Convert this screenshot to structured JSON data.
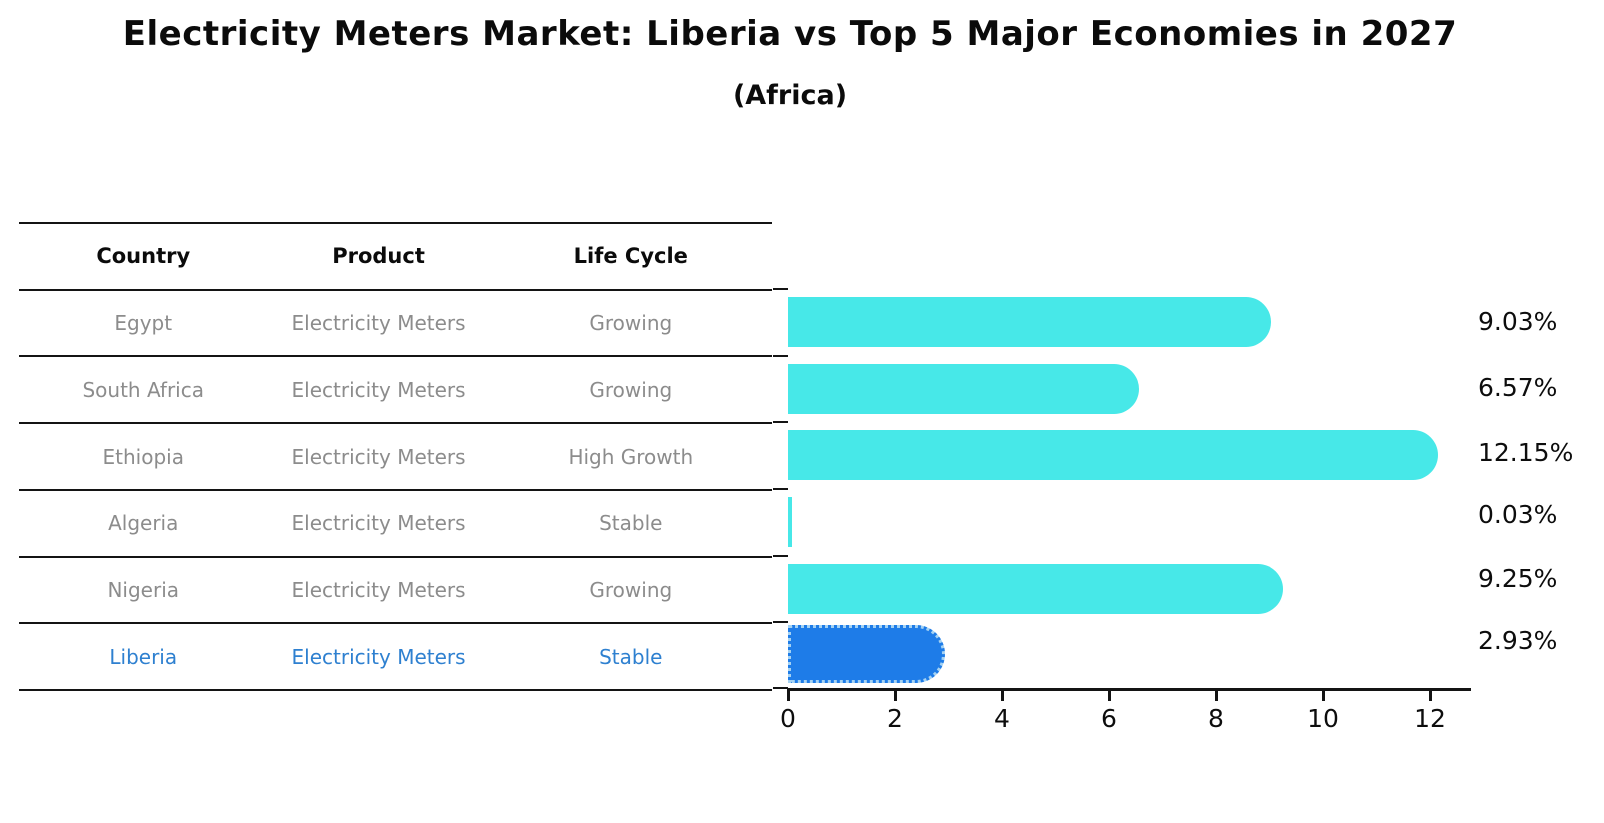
{
  "title": "Electricity Meters Market: Liberia vs Top 5 Major Economies in 2027",
  "subtitle": "(Africa)",
  "table": {
    "headers": {
      "country": "Country",
      "product": "Product",
      "life_cycle": "Life Cycle"
    },
    "rows": [
      {
        "country": "Egypt",
        "product": "Electricity Meters",
        "life_cycle": "Growing",
        "highlight": false
      },
      {
        "country": "South Africa",
        "product": "Electricity Meters",
        "life_cycle": "Growing",
        "highlight": false
      },
      {
        "country": "Ethiopia",
        "product": "Electricity Meters",
        "life_cycle": "High Growth",
        "highlight": false
      },
      {
        "country": "Algeria",
        "product": "Electricity Meters",
        "life_cycle": "Stable",
        "highlight": false
      },
      {
        "country": "Nigeria",
        "product": "Electricity Meters",
        "life_cycle": "Growing",
        "highlight": false
      },
      {
        "country": "Liberia",
        "product": "Electricity Meters",
        "life_cycle": "Stable",
        "highlight": true
      }
    ]
  },
  "chart_data": {
    "type": "bar",
    "orientation": "horizontal",
    "title": "Electricity Meters Market: Liberia vs Top 5 Major Economies in 2027",
    "subtitle": "(Africa)",
    "categories": [
      "Egypt",
      "South Africa",
      "Ethiopia",
      "Algeria",
      "Nigeria",
      "Liberia"
    ],
    "values": [
      9.03,
      6.57,
      12.15,
      0.03,
      9.25,
      2.93
    ],
    "value_labels": [
      "9.03%",
      "6.57%",
      "12.15%",
      "0.03%",
      "9.25%",
      "2.93%"
    ],
    "highlight_category": "Liberia",
    "x_ticks": [
      "0",
      "2",
      "4",
      "6",
      "8",
      "10",
      "12"
    ],
    "xlim": [
      0,
      12.8
    ],
    "grid": false,
    "legend": false,
    "bar_color": "#47e8e8",
    "highlight_bar_color": "#1e7ce8",
    "highlight_text_color": "#2e80d0"
  },
  "colors": {
    "background": "#ffffff",
    "bar_cyan": "#47e8e8",
    "bar_blue": "#1e7ce8",
    "blue_text": "#2e80d0",
    "table_text_gray": "#8c8c8c",
    "line_black": "#141414"
  }
}
